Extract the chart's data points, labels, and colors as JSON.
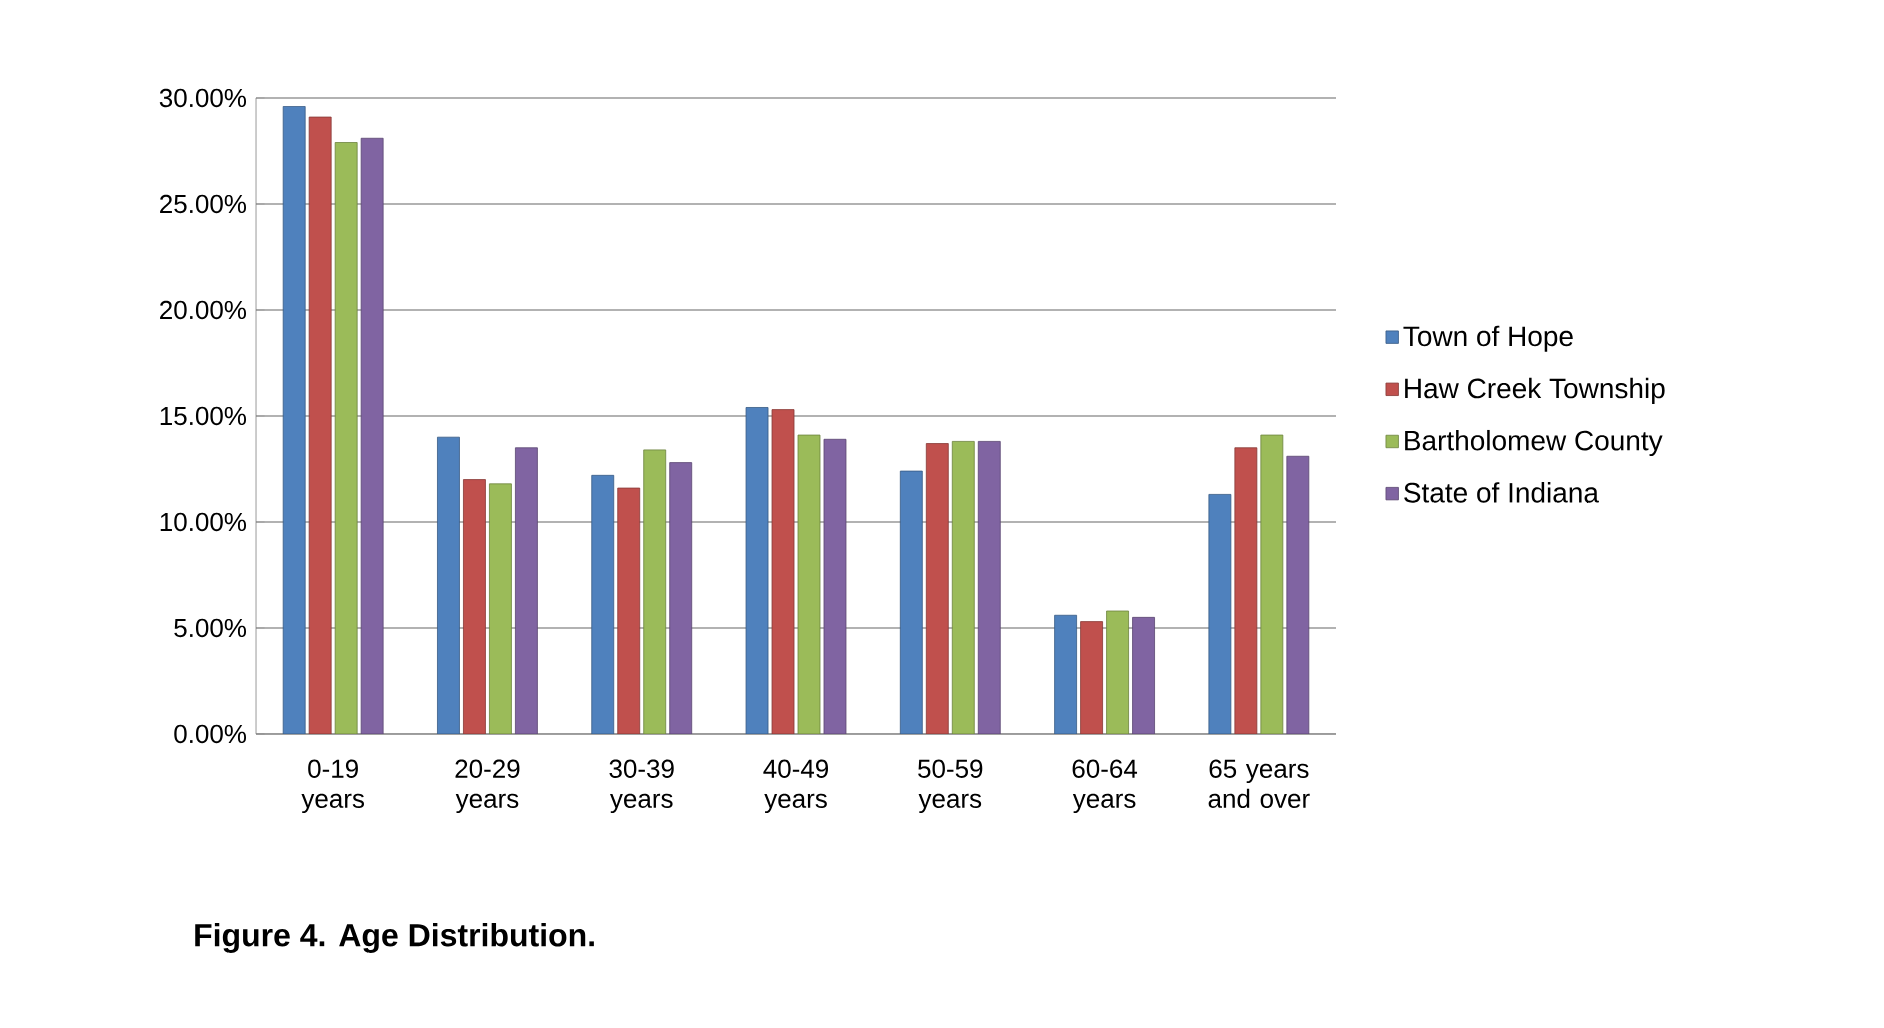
{
  "chart_data": {
    "type": "bar",
    "title": "Figure 4.  Age Distribution.",
    "categories": [
      "0-19 years",
      "20-29 years",
      "30-39 years",
      "40-49 years",
      "50-59 years",
      "60-64 years",
      "65 years and over"
    ],
    "series": [
      {
        "name": "Town of Hope",
        "color": "#4f81bd",
        "values": [
          29.6,
          14.0,
          12.2,
          15.4,
          12.4,
          5.6,
          11.3
        ]
      },
      {
        "name": "Haw Creek Township",
        "color": "#c0504d",
        "values": [
          29.1,
          12.0,
          11.6,
          15.3,
          13.7,
          5.3,
          13.5
        ]
      },
      {
        "name": "Bartholomew County",
        "color": "#9bbb59",
        "values": [
          27.9,
          11.8,
          13.4,
          14.1,
          13.8,
          5.8,
          14.1
        ]
      },
      {
        "name": "State of Indiana",
        "color": "#8064a2",
        "values": [
          28.1,
          13.5,
          12.8,
          13.9,
          13.8,
          5.5,
          13.1
        ]
      }
    ],
    "ylim": [
      0,
      30
    ],
    "yticks": [
      {
        "value": 0,
        "label": "0.00%"
      },
      {
        "value": 5,
        "label": "5.00%"
      },
      {
        "value": 10,
        "label": "10.00%"
      },
      {
        "value": 15,
        "label": "15.00%"
      },
      {
        "value": 20,
        "label": "20.00%"
      },
      {
        "value": 25,
        "label": "25.00%"
      },
      {
        "value": 30,
        "label": "30.00%"
      }
    ],
    "grid": "y",
    "legend": "right"
  }
}
